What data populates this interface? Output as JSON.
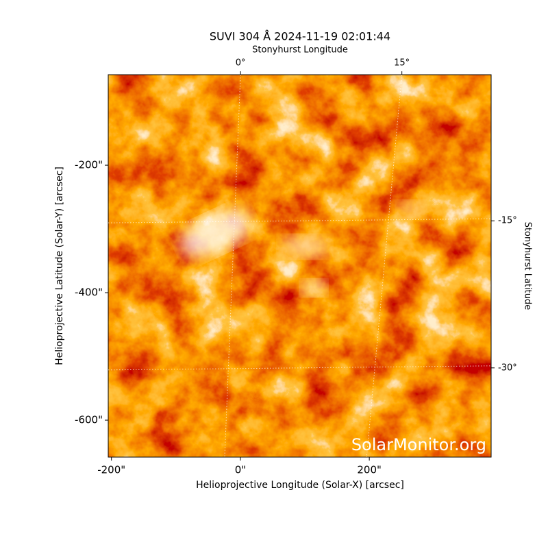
{
  "chart_data": {
    "type": "image",
    "title": "SUVI 304 Å 2024-11-19 02:01:44",
    "x_label": "Helioprojective Longitude (Solar-X) [arcsec]",
    "y_label": "Helioprojective Latitude (Solar-Y) [arcsec]",
    "x2_label": "Stonyhurst Longitude",
    "y2_label": "Stonyhurst Latitude",
    "watermark": "SolarMonitor.org",
    "xlim": [
      -205,
      389
    ],
    "ylim": [
      -658,
      -58
    ],
    "xticks": [
      {
        "value": -200,
        "label": "-200\""
      },
      {
        "value": 0,
        "label": "0\""
      },
      {
        "value": 200,
        "label": "200\""
      }
    ],
    "yticks": [
      {
        "value": -200,
        "label": "-200\""
      },
      {
        "value": -400,
        "label": "-400\""
      },
      {
        "value": -600,
        "label": "-600\""
      }
    ],
    "x2lim": [
      -12.3,
      23.3
    ],
    "y2lim": [
      -39.1,
      -0.1
    ],
    "x2ticks": [
      {
        "value": 0,
        "label": "0°"
      },
      {
        "value": 15,
        "label": "15°"
      }
    ],
    "y2ticks": [
      {
        "value": -15,
        "label": "-15°"
      },
      {
        "value": -30,
        "label": "-30°"
      }
    ],
    "grid": true
  }
}
